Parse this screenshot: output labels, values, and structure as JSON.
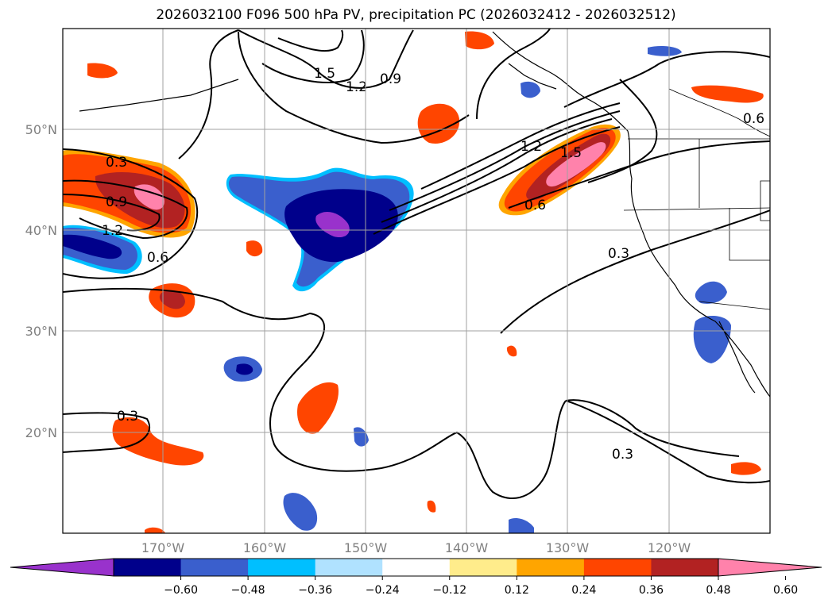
{
  "title": "2026032100 F096 500 hPa PV, precipitation PC (2026032412 - 2026032512)",
  "lat_labels": [
    "50°N",
    "40°N",
    "30°N",
    "20°N"
  ],
  "lon_labels": [
    "170°W",
    "160°W",
    "150°W",
    "140°W",
    "130°W",
    "120°W"
  ],
  "contour_labels": [
    "0.3",
    "0.9",
    "1.2",
    "0.6",
    "1.5",
    "1.2",
    "0.9",
    "1.2",
    "1.5",
    "0.6",
    "0.3",
    "0.6",
    "0.3",
    "0.3"
  ],
  "colorbar": {
    "ticks": [
      "−0.60",
      "−0.48",
      "−0.36",
      "−0.24",
      "−0.12",
      "0.12",
      "0.24",
      "0.36",
      "0.48",
      "0.60"
    ],
    "colors": [
      "#9932cc",
      "#00008b",
      "#3a5fcd",
      "#00bfff",
      "#b0e2ff",
      "#ffffff",
      "#ffec8b",
      "#ffa500",
      "#ff4500",
      "#b22222",
      "#ff82ab"
    ]
  }
}
